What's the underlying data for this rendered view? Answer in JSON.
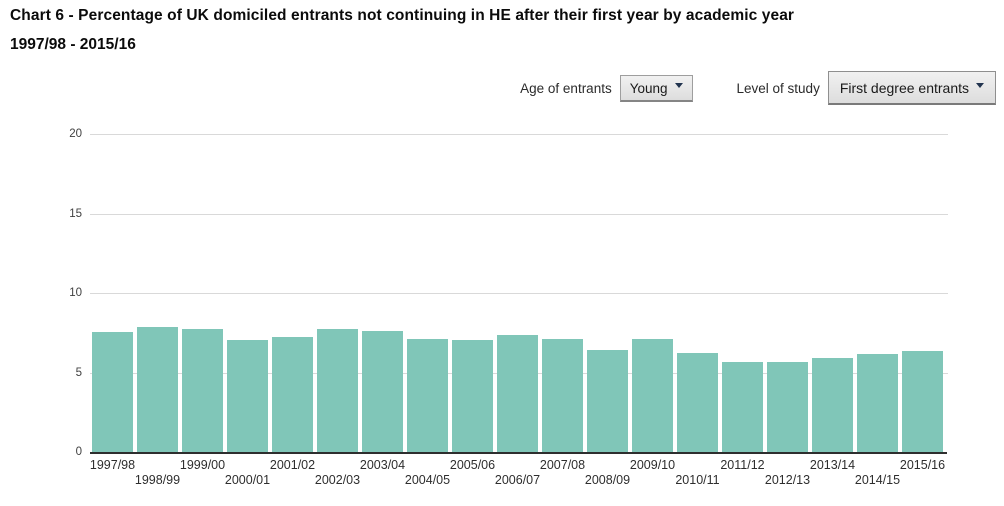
{
  "header": {
    "title": "Chart 6 - Percentage of UK domiciled entrants not continuing in HE after their first year by academic year",
    "subtitle": "1997/98 - 2015/16"
  },
  "controls": {
    "age": {
      "label": "Age of entrants",
      "value": "Young",
      "icon": "caret-down-icon"
    },
    "level": {
      "label": "Level of study",
      "value": "First degree entrants",
      "icon": "caret-down-icon"
    }
  },
  "chart_data": {
    "type": "bar",
    "title": "Chart 6 - Percentage of UK domiciled entrants not continuing in HE after their first year by academic year 1997/98 - 2015/16",
    "categories": [
      "1997/98",
      "1998/99",
      "1999/00",
      "2000/01",
      "2001/02",
      "2002/03",
      "2003/04",
      "2004/05",
      "2005/06",
      "2006/07",
      "2007/08",
      "2008/09",
      "2009/10",
      "2010/11",
      "2011/12",
      "2012/13",
      "2013/14",
      "2014/15",
      "2015/16"
    ],
    "values": [
      7.6,
      7.9,
      7.8,
      7.1,
      7.3,
      7.8,
      7.7,
      7.2,
      7.1,
      7.4,
      7.2,
      6.5,
      7.2,
      6.3,
      5.7,
      5.7,
      6.0,
      6.2,
      6.4
    ],
    "xlabel": "",
    "ylabel": "",
    "ylim": [
      0,
      20
    ],
    "yticks": [
      0,
      5,
      10,
      15,
      20
    ],
    "grid": true,
    "legend_position": "none",
    "bar_color": "#80c6b8"
  },
  "colors": {
    "bar": "#80c6b8",
    "gridline": "#d9d9d9",
    "axis_line": "#2e2e2e",
    "tick_label": "#404040"
  }
}
